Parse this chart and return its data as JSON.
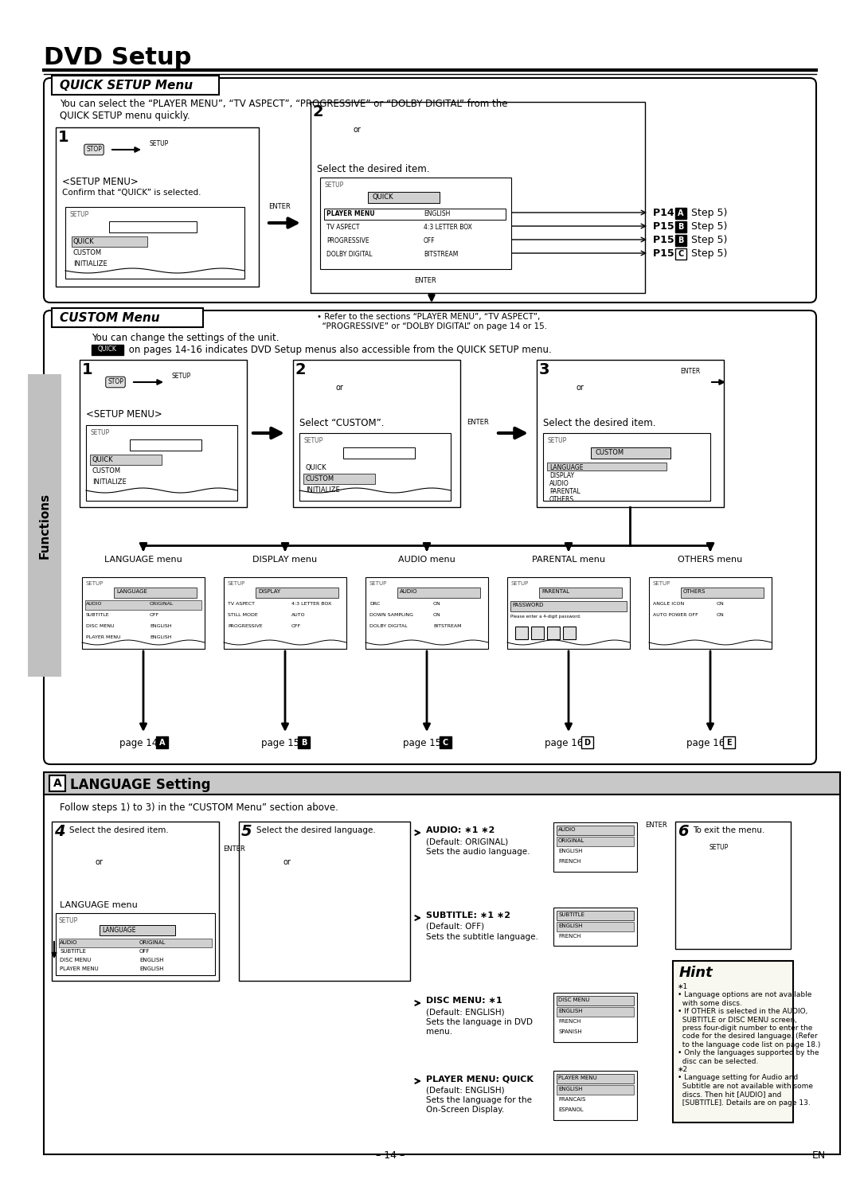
{
  "title": "DVD Setup",
  "bg_color": "#ffffff",
  "section1_title": "QUICK SETUP Menu",
  "section2_title": "CUSTOM Menu",
  "section3_title": "LANGUAGE Setting",
  "quick_desc": "You can select the “PLAYER MENU”, “TV ASPECT”, “PROGRESSIVE” or “DOLBY DIGITAL” from the\nQUICK SETUP menu quickly.",
  "custom_desc": "You can change the settings of the unit.",
  "lang_desc": "Follow steps 1) to 3) in the “CUSTOM Menu” section above."
}
